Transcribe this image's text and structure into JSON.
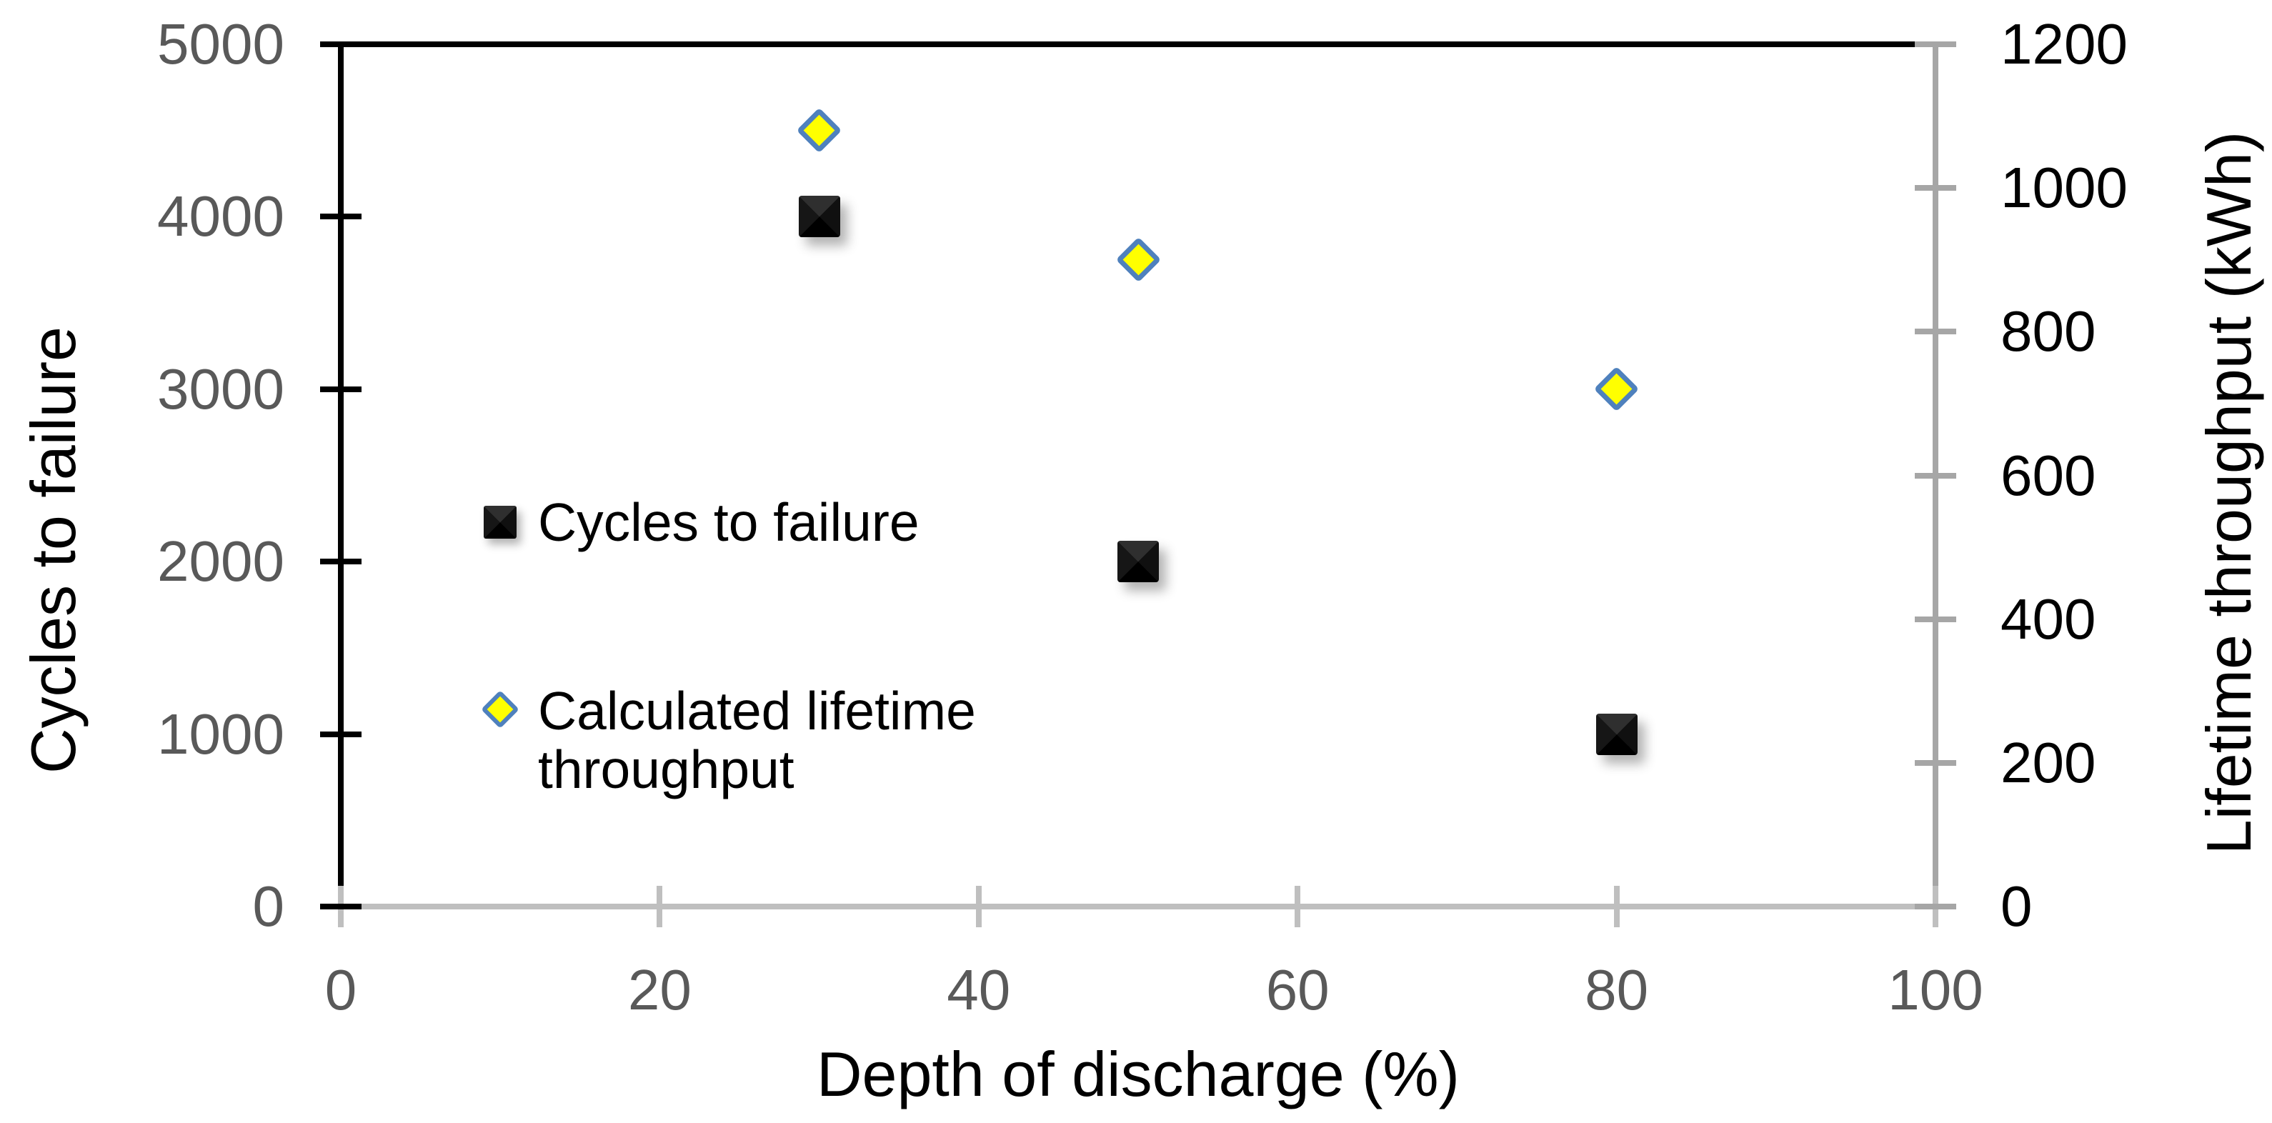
{
  "chart_data": {
    "type": "scatter",
    "x_axis": {
      "label": "Depth of discharge (%)",
      "min": 0,
      "max": 100,
      "ticks": [
        0,
        20,
        40,
        60,
        80,
        100
      ]
    },
    "y_axis_left": {
      "label": "Cycles to failure",
      "min": 0,
      "max": 5000,
      "ticks": [
        0,
        1000,
        2000,
        3000,
        4000,
        5000
      ]
    },
    "y_axis_right": {
      "label": "Lifetime throughput (kWh)",
      "min": 0,
      "max": 1200,
      "ticks": [
        0,
        200,
        400,
        600,
        800,
        1000,
        1200
      ]
    },
    "series": [
      {
        "name": "Cycles to failure",
        "axis": "left",
        "marker": "square",
        "color": "#0d0d0d",
        "points": [
          {
            "x": 30,
            "y": 4000
          },
          {
            "x": 50,
            "y": 2000
          },
          {
            "x": 80,
            "y": 1000
          }
        ]
      },
      {
        "name": "Calculated lifetime throughput",
        "axis": "right",
        "marker": "diamond",
        "fill": "#ffff00",
        "stroke": "#4f81bd",
        "points": [
          {
            "x": 30,
            "y": 1080
          },
          {
            "x": 50,
            "y": 900
          },
          {
            "x": 80,
            "y": 720
          }
        ]
      }
    ],
    "grid": "off",
    "legend_position": "inside-left"
  },
  "legend": {
    "entry1_lines": [
      "Cycles to failure"
    ],
    "entry2_lines": [
      "Calculated lifetime",
      "throughput"
    ]
  },
  "colors": {
    "left_axis": "#000000",
    "bottom_axis": "#bfbfbf",
    "right_axis": "#a6a6a6",
    "left_tick_labels": "#595959",
    "x_tick_labels": "#595959",
    "right_tick_labels": "#000000",
    "diamond_fill": "#ffff00",
    "diamond_stroke": "#4f81bd",
    "square_fill": "#0d0d0d"
  }
}
